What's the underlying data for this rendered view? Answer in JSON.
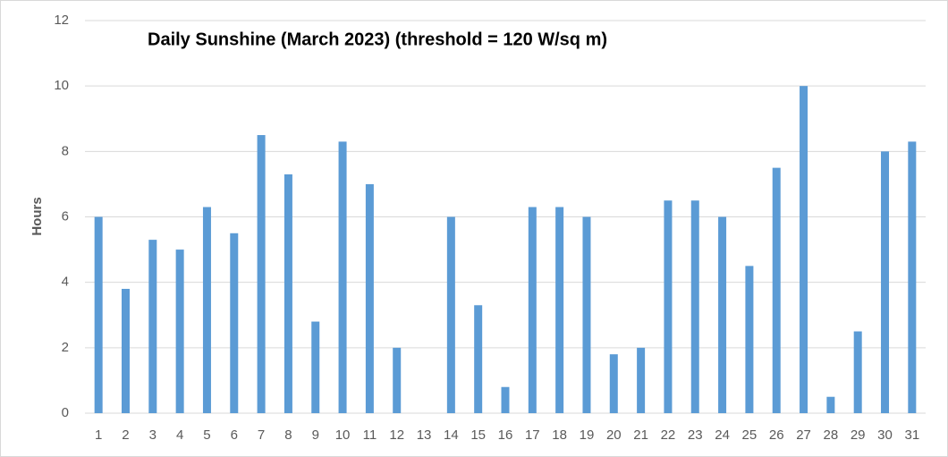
{
  "chart_data": {
    "type": "bar",
    "title": "Daily Sunshine (March 2023) (threshold = 120 W/sq m)",
    "y_label": "Hours",
    "categories": [
      "1",
      "2",
      "3",
      "4",
      "5",
      "6",
      "7",
      "8",
      "9",
      "10",
      "11",
      "12",
      "13",
      "14",
      "15",
      "16",
      "17",
      "18",
      "19",
      "20",
      "21",
      "22",
      "23",
      "24",
      "25",
      "26",
      "27",
      "28",
      "29",
      "30",
      "31"
    ],
    "values": [
      6,
      3.8,
      5.3,
      5,
      6.3,
      5.5,
      8.5,
      7.3,
      2.8,
      8.3,
      7,
      2,
      0,
      6,
      3.3,
      0.8,
      6.3,
      6.3,
      6,
      1.8,
      2,
      6.5,
      6.5,
      6,
      4.5,
      7.5,
      10,
      0.5,
      2.5,
      8,
      8.3
    ],
    "color": "#5b9bd5",
    "ylim": [
      0,
      12
    ],
    "yticks": [
      0,
      2,
      4,
      6,
      8,
      10,
      12
    ],
    "grid": true
  }
}
